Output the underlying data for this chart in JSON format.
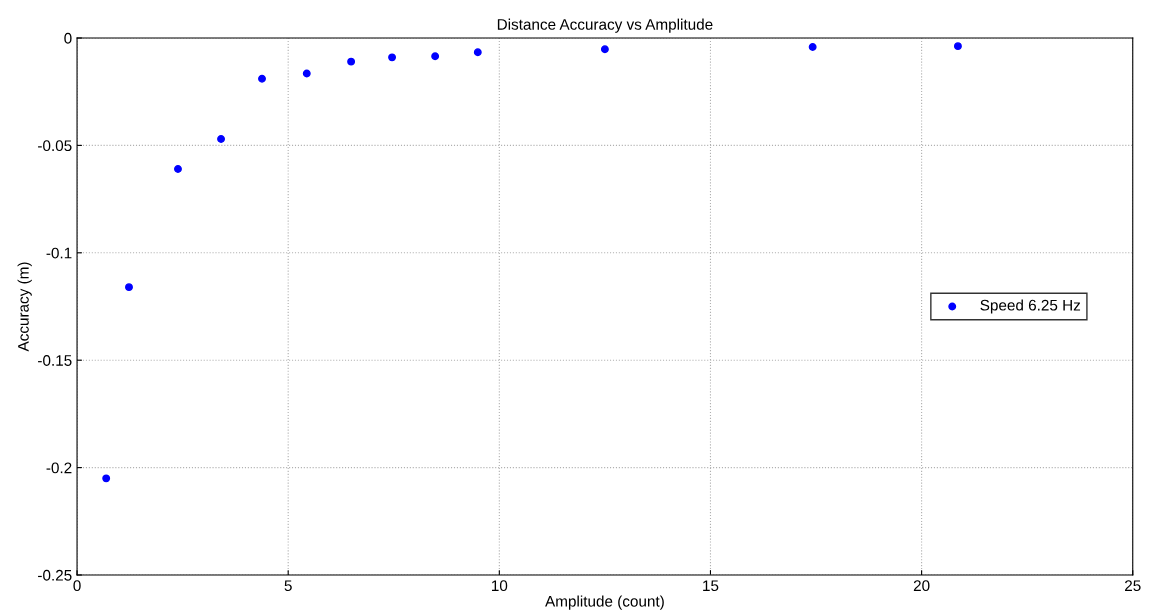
{
  "chart_data": {
    "type": "scatter",
    "title": "Distance Accuracy vs Amplitude",
    "xlabel": "Amplitude (count)",
    "ylabel": "Accuracy (m)",
    "series": [
      {
        "name": "Speed 6.25 Hz",
        "color": "#0000ff",
        "x": [
          0.69,
          1.23,
          2.39,
          3.41,
          4.38,
          5.44,
          6.49,
          7.46,
          8.48,
          9.49,
          12.5,
          17.42,
          20.86
        ],
        "values": [
          -0.205,
          -0.116,
          -0.061,
          -0.047,
          -0.019,
          -0.0165,
          -0.011,
          -0.009,
          -0.0085,
          -0.0066,
          -0.0052,
          -0.0042,
          -0.0038
        ]
      }
    ],
    "xlim": [
      0,
      25
    ],
    "xticks": [
      0,
      5,
      10,
      15,
      20,
      25
    ],
    "ylim": [
      -0.25,
      0
    ],
    "yticks": [
      -0.25,
      -0.2,
      -0.15,
      -0.1,
      -0.05,
      0
    ],
    "grid": true,
    "legend": "right",
    "marker": "circle"
  }
}
